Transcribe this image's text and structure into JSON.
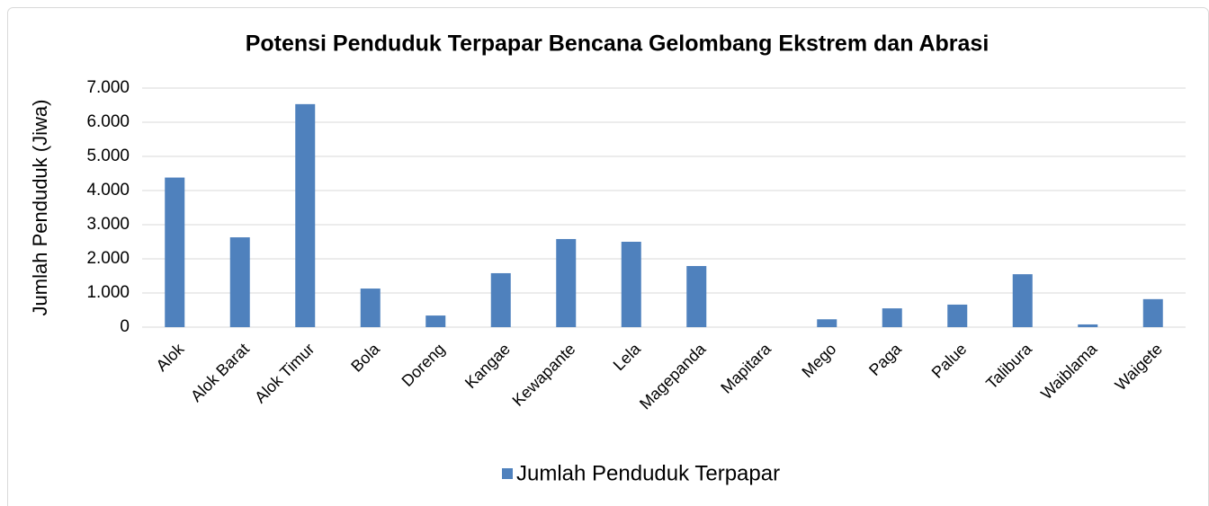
{
  "chart_data": {
    "type": "bar",
    "title": "Potensi Penduduk Terpapar Bencana Gelombang Ekstrem dan Abrasi",
    "y_label": "Jumlah Penduduk (Jiwa)",
    "categories": [
      "Alok",
      "Alok Barat",
      "Alok Timur",
      "Bola",
      "Doreng",
      "Kangae",
      "Kewapante",
      "Lela",
      "Magepanda",
      "Mapitara",
      "Mego",
      "Paga",
      "Palue",
      "Talibura",
      "Waiblama",
      "Waigete"
    ],
    "series": [
      {
        "name": "Jumlah Penduduk Terpapar",
        "color": "#4f81bd",
        "values": [
          4380,
          2630,
          6530,
          1130,
          340,
          1580,
          2580,
          2500,
          1790,
          0,
          230,
          550,
          660,
          1550,
          80,
          820
        ]
      }
    ],
    "ylim": [
      0,
      7000
    ],
    "yticks": [
      0,
      {
        "value": 1000,
        "label": "1.000"
      },
      {
        "value": 2000,
        "label": "2.000"
      },
      {
        "value": 3000,
        "label": "3.000"
      },
      {
        "value": 4000,
        "label": "4.000"
      },
      {
        "value": 5000,
        "label": "5.000"
      },
      {
        "value": 6000,
        "label": "6.000"
      },
      {
        "value": 7000,
        "label": "7.000"
      }
    ],
    "grid": true,
    "legend": "bottom"
  }
}
